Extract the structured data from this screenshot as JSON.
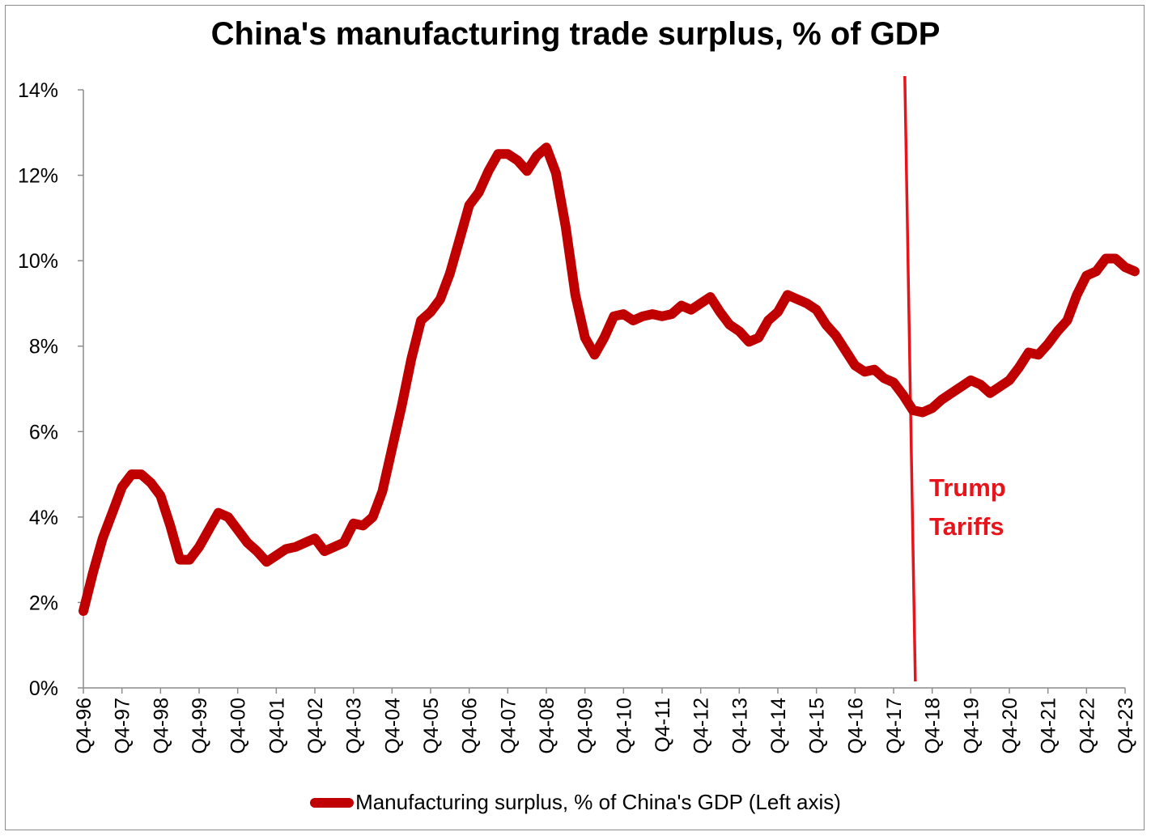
{
  "title": "China's manufacturing trade surplus, % of GDP",
  "chart_data": {
    "type": "line",
    "title": "China's manufacturing trade surplus, % of GDP",
    "xlabel": "",
    "ylabel": "",
    "ylim": [
      0,
      14
    ],
    "yticks": [
      "0%",
      "2%",
      "4%",
      "6%",
      "8%",
      "10%",
      "12%",
      "14%"
    ],
    "x_tick_labels": [
      "Q4-96",
      "Q4-97",
      "Q4-98",
      "Q4-99",
      "Q4-00",
      "Q4-01",
      "Q4-02",
      "Q4-03",
      "Q4-04",
      "Q4-05",
      "Q4-06",
      "Q4-07",
      "Q4-08",
      "Q4-09",
      "Q4-10",
      "Q4-11",
      "Q4-12",
      "Q4-13",
      "Q4-14",
      "Q4-15",
      "Q4-16",
      "Q4-17",
      "Q4-18",
      "Q4-19",
      "Q4-20",
      "Q4-21",
      "Q4-22",
      "Q4-23"
    ],
    "grid": false,
    "legend_position": "bottom",
    "series": [
      {
        "name": "Manufacturing surplus, % of China's GDP (Left axis)",
        "color": "#c00000",
        "values": [
          1.8,
          2.7,
          3.5,
          4.1,
          4.7,
          5.0,
          5.0,
          4.8,
          4.5,
          3.8,
          3.0,
          3.0,
          3.3,
          3.7,
          4.1,
          4.0,
          3.7,
          3.4,
          3.2,
          2.95,
          3.1,
          3.25,
          3.3,
          3.4,
          3.5,
          3.2,
          3.3,
          3.4,
          3.85,
          3.8,
          4.0,
          4.6,
          5.6,
          6.6,
          7.7,
          8.6,
          8.8,
          9.1,
          9.7,
          10.5,
          11.3,
          11.6,
          12.1,
          12.5,
          12.5,
          12.35,
          12.1,
          12.45,
          12.65,
          12.05,
          10.8,
          9.2,
          8.2,
          7.8,
          8.2,
          8.7,
          8.75,
          8.6,
          8.7,
          8.75,
          8.7,
          8.75,
          8.95,
          8.85,
          9.0,
          9.15,
          8.8,
          8.5,
          8.35,
          8.1,
          8.2,
          8.6,
          8.8,
          9.2,
          9.1,
          9.0,
          8.85,
          8.5,
          8.25,
          7.9,
          7.55,
          7.4,
          7.45,
          7.25,
          7.15,
          6.85,
          6.5,
          6.45,
          6.55,
          6.75,
          6.9,
          7.05,
          7.2,
          7.1,
          6.9,
          7.05,
          7.2,
          7.5,
          7.85,
          7.8,
          8.05,
          8.35,
          8.6,
          9.2,
          9.65,
          9.75,
          10.05,
          10.05,
          9.85,
          9.75
        ]
      }
    ],
    "annotation": {
      "lines": [
        "Trump",
        "Tariffs"
      ],
      "marker_x_quarter_index": 86,
      "color": "#e8141b"
    }
  }
}
